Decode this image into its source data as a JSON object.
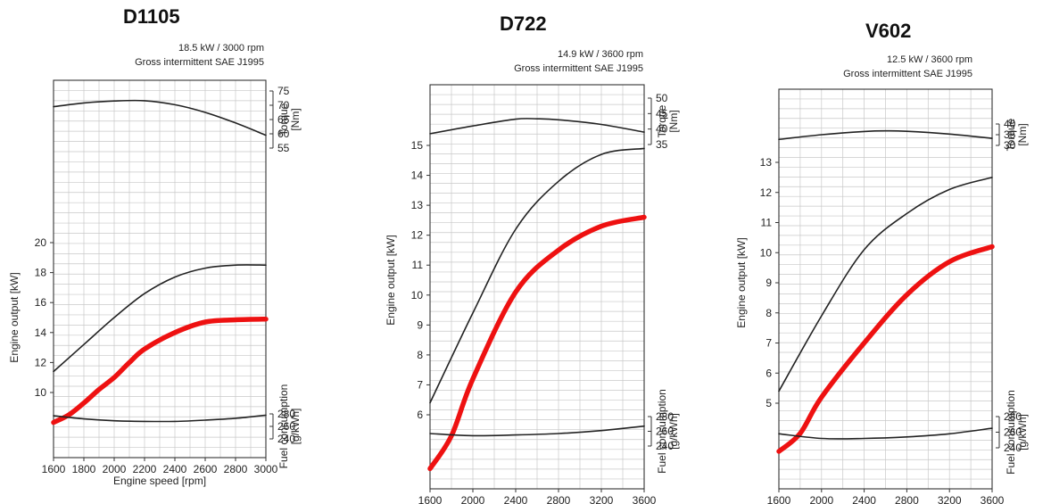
{
  "chart_data": [
    {
      "type": "line",
      "title": "D1105",
      "subtitle": [
        "18.5 kW / 3000 rpm",
        "Gross intermittent SAE J1995"
      ],
      "xlabel": "Engine speed [rpm]",
      "x_ticks": [
        "1600",
        "1800",
        "2000",
        "2200",
        "2400",
        "2600",
        "2800",
        "3000"
      ],
      "xlim": [
        1600,
        3000
      ],
      "grid": true,
      "axes": {
        "torque": {
          "label": [
            "Torque",
            "[Nm]"
          ],
          "ticks": [
            "75",
            "70",
            "65",
            "60",
            "55"
          ],
          "range": [
            55,
            75
          ]
        },
        "output": {
          "label": "Engine output [kW]",
          "ticks": [
            "20",
            "18",
            "16",
            "14",
            "12",
            "10"
          ],
          "range": [
            10,
            20
          ]
        },
        "fuel": {
          "label": [
            "Fuel consumption",
            "[g/kWh]"
          ],
          "ticks": [
            "280",
            "260",
            "240"
          ],
          "range": [
            240,
            280
          ]
        }
      },
      "series": [
        {
          "axis": "torque",
          "color": "#222222",
          "x": [
            1600,
            1800,
            2000,
            2200,
            2400,
            2600,
            2800,
            3000
          ],
          "values": [
            69.5,
            70.8,
            71.5,
            71.6,
            70.2,
            67.5,
            63.8,
            59.5
          ]
        },
        {
          "axis": "output",
          "color": "#222222",
          "x": [
            1600,
            1800,
            2000,
            2200,
            2400,
            2600,
            2800,
            3000
          ],
          "values": [
            11.4,
            13.2,
            15.0,
            16.6,
            17.7,
            18.3,
            18.5,
            18.5
          ]
        },
        {
          "axis": "output",
          "color": "#ee1111",
          "x": [
            1600,
            1700,
            1800,
            1900,
            2000,
            2100,
            2200,
            2400,
            2600,
            2800,
            3000
          ],
          "values": [
            8.0,
            8.5,
            9.3,
            10.2,
            11.0,
            12.0,
            12.9,
            14.0,
            14.7,
            14.85,
            14.9
          ]
        },
        {
          "axis": "fuel",
          "color": "#222222",
          "x": [
            1600,
            1800,
            2000,
            2200,
            2400,
            2600,
            2800,
            3000
          ],
          "values": [
            277,
            272,
            269,
            268,
            268,
            270,
            273,
            278
          ]
        }
      ]
    },
    {
      "type": "line",
      "title": "D722",
      "subtitle": [
        "14.9 kW / 3600 rpm",
        "Gross intermittent SAE J1995"
      ],
      "xlabel": "Engine speed [rpm]",
      "x_ticks": [
        "1600",
        "2000",
        "2400",
        "2800",
        "3200",
        "3600"
      ],
      "xlim": [
        1600,
        3600
      ],
      "grid": true,
      "axes": {
        "torque": {
          "label": [
            "Torque",
            "[Nm]"
          ],
          "ticks": [
            "50",
            "45",
            "40",
            "35"
          ],
          "range": [
            35,
            50
          ]
        },
        "output": {
          "label": "Engine output [kW]",
          "ticks": [
            "15",
            "14",
            "13",
            "12",
            "11",
            "10",
            "9",
            "8",
            "7",
            "6"
          ],
          "range": [
            6,
            15
          ]
        },
        "fuel": {
          "label": [
            "Fuel consumption",
            "[g/kWh]"
          ],
          "ticks": [
            "280",
            "260",
            "240"
          ],
          "range": [
            240,
            280
          ]
        }
      },
      "series": [
        {
          "axis": "torque",
          "color": "#222222",
          "x": [
            1600,
            2000,
            2400,
            2600,
            2800,
            3200,
            3600
          ],
          "values": [
            38.5,
            41.0,
            43.2,
            43.3,
            43.0,
            41.5,
            39.0
          ]
        },
        {
          "axis": "output",
          "color": "#222222",
          "x": [
            1600,
            2000,
            2400,
            2800,
            3200,
            3600
          ],
          "values": [
            6.4,
            9.4,
            12.2,
            13.8,
            14.7,
            14.9
          ]
        },
        {
          "axis": "output",
          "color": "#ee1111",
          "x": [
            1600,
            1800,
            2000,
            2400,
            2800,
            3200,
            3600
          ],
          "values": [
            4.2,
            5.3,
            7.2,
            10.1,
            11.5,
            12.3,
            12.6
          ]
        },
        {
          "axis": "fuel",
          "color": "#222222",
          "x": [
            1600,
            2000,
            2400,
            2800,
            3200,
            3600
          ],
          "values": [
            257,
            254,
            255,
            257,
            261,
            267
          ]
        }
      ]
    },
    {
      "type": "line",
      "title": "V602",
      "subtitle": [
        "12.5 kW / 3600 rpm",
        "Gross intermittent SAE J1995"
      ],
      "xlabel": "Engine speed [rpm]",
      "x_ticks": [
        "1600",
        "2000",
        "2400",
        "2800",
        "3200",
        "3600"
      ],
      "xlim": [
        1600,
        3600
      ],
      "grid": true,
      "axes": {
        "torque": {
          "label": [
            "Torque",
            "[Nm]"
          ],
          "ticks": [
            "40",
            "35",
            "30"
          ],
          "range": [
            30,
            40
          ]
        },
        "output": {
          "label": "Engine output [kW]",
          "ticks": [
            "13",
            "12",
            "11",
            "10",
            "9",
            "8",
            "7",
            "6",
            "5"
          ],
          "range": [
            5,
            13
          ]
        },
        "fuel": {
          "label": [
            "Fuel consumption",
            "[g/kWh]"
          ],
          "ticks": [
            "280",
            "260",
            "240"
          ],
          "range": [
            240,
            280
          ]
        }
      },
      "series": [
        {
          "axis": "torque",
          "color": "#222222",
          "x": [
            1600,
            2000,
            2400,
            2600,
            2800,
            3200,
            3600
          ],
          "values": [
            32.8,
            35.0,
            36.5,
            36.8,
            36.6,
            35.3,
            33.3
          ]
        },
        {
          "axis": "output",
          "color": "#222222",
          "x": [
            1600,
            2000,
            2400,
            2800,
            3200,
            3600
          ],
          "values": [
            5.4,
            7.9,
            10.1,
            11.3,
            12.1,
            12.5
          ]
        },
        {
          "axis": "output",
          "color": "#ee1111",
          "x": [
            1600,
            1800,
            2000,
            2400,
            2800,
            3200,
            3600
          ],
          "values": [
            3.4,
            4.0,
            5.2,
            7.0,
            8.6,
            9.7,
            10.2
          ]
        },
        {
          "axis": "fuel",
          "color": "#222222",
          "x": [
            1600,
            2000,
            2400,
            2800,
            3200,
            3600
          ],
          "values": [
            258,
            252,
            252,
            254,
            258,
            265
          ]
        }
      ]
    }
  ]
}
